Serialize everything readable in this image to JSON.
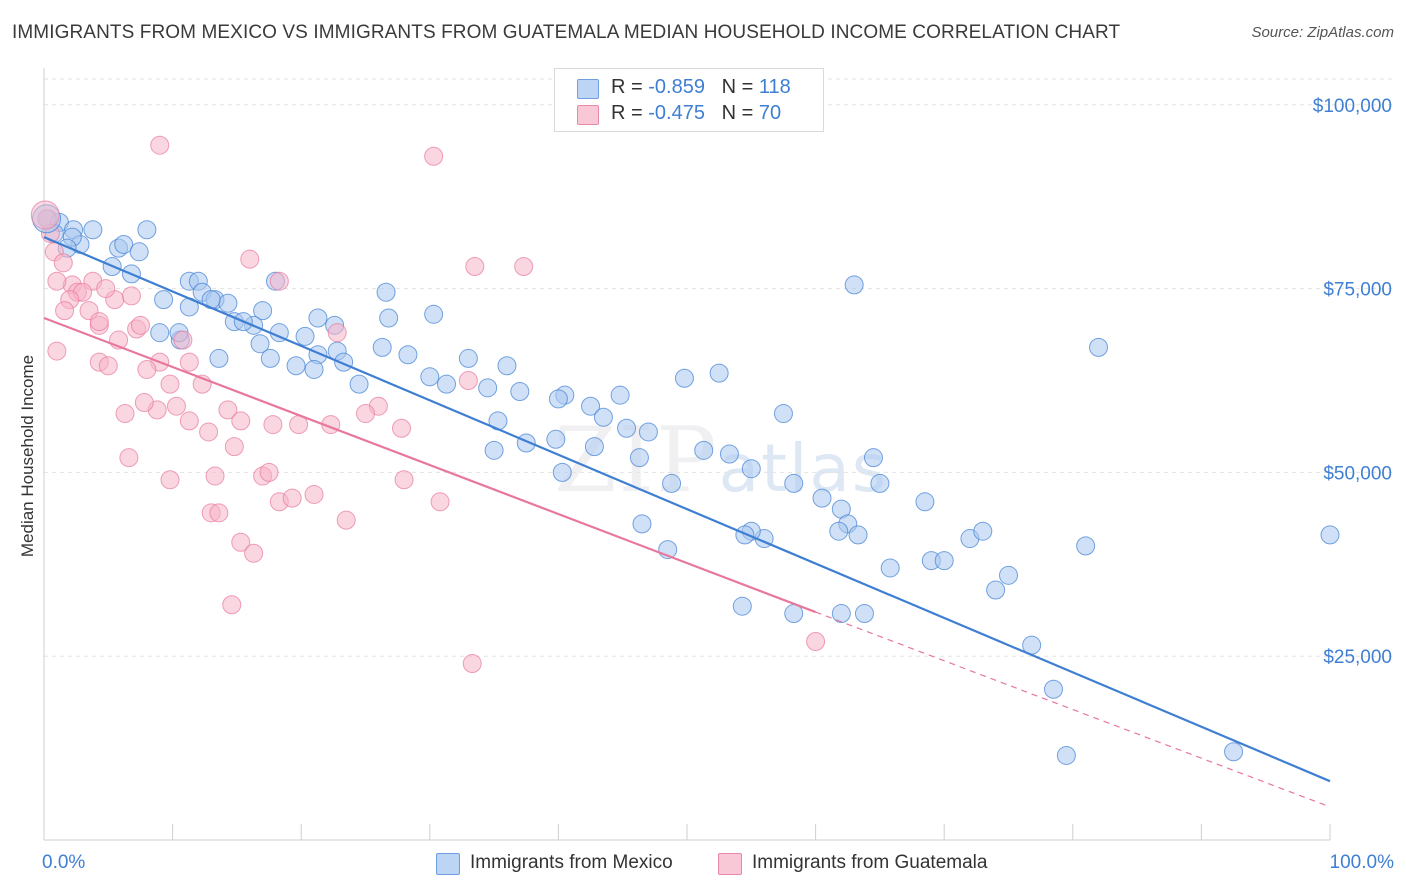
{
  "title": "IMMIGRANTS FROM MEXICO VS IMMIGRANTS FROM GUATEMALA MEDIAN HOUSEHOLD INCOME CORRELATION CHART",
  "source": "Source: ZipAtlas.com",
  "watermark": {
    "zip": "ZIP",
    "atlas": "atlas"
  },
  "legend": {
    "rows": [
      {
        "r_label": "R = ",
        "r_value": "-0.859",
        "n_label": "N = ",
        "n_value": "118",
        "color": "#a9c8f0"
      },
      {
        "r_label": "R = ",
        "r_value": "-0.475",
        "n_label": "N = ",
        "n_value": "70",
        "color": "#f5b5c8"
      }
    ]
  },
  "chart_data": {
    "type": "scatter",
    "title": "IMMIGRANTS FROM MEXICO VS IMMIGRANTS FROM GUATEMALA MEDIAN HOUSEHOLD INCOME CORRELATION CHART",
    "xlabel": "",
    "ylabel": "Median Household Income",
    "xlim": [
      0,
      100
    ],
    "ylim": [
      0,
      105000
    ],
    "x_tick_labels": [
      "0.0%",
      "100.0%"
    ],
    "y_ticks": [
      25000,
      50000,
      75000,
      100000
    ],
    "y_tick_labels": [
      "$25,000",
      "$50,000",
      "$75,000",
      "$100,000"
    ],
    "grid": true,
    "legend_position": "bottom",
    "series": [
      {
        "name": "Immigrants from Mexico",
        "color": "#3f7fd3",
        "fill": "#a9c8f0",
        "trend": {
          "x": [
            0,
            100
          ],
          "y": [
            82000,
            8000
          ],
          "dashed_extension": false
        },
        "points": [
          [
            0.3,
            84500
          ],
          [
            1.2,
            84000
          ],
          [
            0.8,
            82500
          ],
          [
            2.3,
            83000
          ],
          [
            3.8,
            83000
          ],
          [
            8.0,
            83000
          ],
          [
            2.8,
            81000
          ],
          [
            2.2,
            82000
          ],
          [
            1.8,
            80500
          ],
          [
            5.8,
            80500
          ],
          [
            6.2,
            81000
          ],
          [
            7.4,
            80000
          ],
          [
            5.3,
            78000
          ],
          [
            6.8,
            77000
          ],
          [
            11.3,
            76000
          ],
          [
            12.0,
            76000
          ],
          [
            18.0,
            76000
          ],
          [
            26.6,
            74500
          ],
          [
            12.3,
            74500
          ],
          [
            13.3,
            73500
          ],
          [
            9.3,
            73500
          ],
          [
            14.3,
            73000
          ],
          [
            11.3,
            72500
          ],
          [
            17.0,
            72000
          ],
          [
            26.8,
            71000
          ],
          [
            30.3,
            71500
          ],
          [
            21.3,
            71000
          ],
          [
            14.8,
            70500
          ],
          [
            16.3,
            70000
          ],
          [
            22.6,
            70000
          ],
          [
            9.0,
            69000
          ],
          [
            18.3,
            69000
          ],
          [
            20.3,
            68500
          ],
          [
            10.6,
            68000
          ],
          [
            16.8,
            67500
          ],
          [
            26.3,
            67000
          ],
          [
            22.8,
            66500
          ],
          [
            21.3,
            66000
          ],
          [
            28.3,
            66000
          ],
          [
            17.6,
            65500
          ],
          [
            23.3,
            65000
          ],
          [
            13.6,
            65500
          ],
          [
            19.6,
            64500
          ],
          [
            21.0,
            64000
          ],
          [
            33.0,
            65500
          ],
          [
            36.0,
            64500
          ],
          [
            30.0,
            63000
          ],
          [
            40.5,
            60500
          ],
          [
            24.5,
            62000
          ],
          [
            37.0,
            61000
          ],
          [
            40.0,
            60000
          ],
          [
            34.5,
            61500
          ],
          [
            31.3,
            62000
          ],
          [
            44.8,
            60500
          ],
          [
            42.5,
            59000
          ],
          [
            49.8,
            62800
          ],
          [
            52.5,
            63500
          ],
          [
            43.5,
            57500
          ],
          [
            45.3,
            56000
          ],
          [
            47.0,
            55500
          ],
          [
            35.3,
            57000
          ],
          [
            37.5,
            54000
          ],
          [
            39.8,
            54500
          ],
          [
            42.8,
            53500
          ],
          [
            46.3,
            52000
          ],
          [
            51.3,
            53000
          ],
          [
            35.0,
            53000
          ],
          [
            53.3,
            52500
          ],
          [
            57.5,
            58000
          ],
          [
            48.8,
            48500
          ],
          [
            40.3,
            50000
          ],
          [
            55.0,
            50500
          ],
          [
            58.3,
            48500
          ],
          [
            60.5,
            46500
          ],
          [
            62.0,
            45000
          ],
          [
            64.5,
            52000
          ],
          [
            65.0,
            48500
          ],
          [
            68.5,
            46000
          ],
          [
            69.0,
            38000
          ],
          [
            70.0,
            38000
          ],
          [
            62.5,
            43000
          ],
          [
            63.3,
            41500
          ],
          [
            61.8,
            42000
          ],
          [
            72.0,
            41000
          ],
          [
            65.8,
            37000
          ],
          [
            56.0,
            41000
          ],
          [
            55.0,
            42000
          ],
          [
            54.5,
            41500
          ],
          [
            46.5,
            43000
          ],
          [
            48.5,
            39500
          ],
          [
            74.0,
            34000
          ],
          [
            75.0,
            36000
          ],
          [
            76.8,
            26500
          ],
          [
            81.0,
            40000
          ],
          [
            78.5,
            20500
          ],
          [
            63.8,
            30800
          ],
          [
            62.0,
            30800
          ],
          [
            54.3,
            31800
          ],
          [
            58.3,
            30800
          ],
          [
            79.5,
            11500
          ],
          [
            92.5,
            12000
          ],
          [
            73.0,
            42000
          ],
          [
            63.0,
            75500
          ],
          [
            82.0,
            67000
          ],
          [
            100.0,
            41500
          ],
          [
            10.5,
            69000
          ],
          [
            13.0,
            73500
          ],
          [
            15.5,
            70500
          ]
        ]
      },
      {
        "name": "Immigrants from Guatemala",
        "color": "#e8779c",
        "fill": "#f5b5c8",
        "trend": {
          "x": [
            0,
            60
          ],
          "y": [
            71000,
            31000
          ],
          "dashed_extension": true,
          "dashed_to": [
            100,
            4500
          ]
        },
        "points": [
          [
            0.2,
            84500
          ],
          [
            0.5,
            82500
          ],
          [
            0.8,
            80000
          ],
          [
            1.5,
            78500
          ],
          [
            3.8,
            76000
          ],
          [
            2.2,
            75500
          ],
          [
            2.6,
            74500
          ],
          [
            3.0,
            74500
          ],
          [
            1.0,
            76000
          ],
          [
            2.0,
            73500
          ],
          [
            5.5,
            73500
          ],
          [
            6.8,
            74000
          ],
          [
            4.3,
            70000
          ],
          [
            1.6,
            72000
          ],
          [
            3.5,
            72000
          ],
          [
            4.3,
            70500
          ],
          [
            7.2,
            69500
          ],
          [
            5.8,
            68000
          ],
          [
            10.8,
            68000
          ],
          [
            9.0,
            65000
          ],
          [
            11.3,
            65000
          ],
          [
            4.3,
            65000
          ],
          [
            5.0,
            64500
          ],
          [
            8.0,
            64000
          ],
          [
            9.8,
            62000
          ],
          [
            12.3,
            62000
          ],
          [
            6.3,
            58000
          ],
          [
            8.8,
            58500
          ],
          [
            7.8,
            59500
          ],
          [
            10.3,
            59000
          ],
          [
            14.3,
            58500
          ],
          [
            11.3,
            57000
          ],
          [
            15.3,
            57000
          ],
          [
            17.8,
            56500
          ],
          [
            19.8,
            56500
          ],
          [
            22.3,
            56500
          ],
          [
            12.8,
            55500
          ],
          [
            14.8,
            53500
          ],
          [
            6.6,
            52000
          ],
          [
            9.8,
            49000
          ],
          [
            13.3,
            49500
          ],
          [
            17.0,
            49500
          ],
          [
            17.5,
            50000
          ],
          [
            18.3,
            46000
          ],
          [
            19.3,
            46500
          ],
          [
            21.0,
            47000
          ],
          [
            13.0,
            44500
          ],
          [
            13.6,
            44500
          ],
          [
            23.5,
            43500
          ],
          [
            15.3,
            40500
          ],
          [
            16.3,
            39000
          ],
          [
            14.6,
            32000
          ],
          [
            26.0,
            59000
          ],
          [
            22.8,
            69000
          ],
          [
            27.8,
            56000
          ],
          [
            30.8,
            46000
          ],
          [
            33.5,
            78000
          ],
          [
            37.3,
            78000
          ],
          [
            9.0,
            94500
          ],
          [
            30.3,
            93000
          ],
          [
            16.0,
            79000
          ],
          [
            18.3,
            76000
          ],
          [
            4.8,
            75000
          ],
          [
            7.5,
            70000
          ],
          [
            1.0,
            66500
          ],
          [
            33.0,
            62500
          ],
          [
            25.0,
            58000
          ],
          [
            33.3,
            24000
          ],
          [
            60.0,
            27000
          ],
          [
            28.0,
            49000
          ]
        ]
      }
    ]
  },
  "bottom_legend": [
    "Immigrants from Mexico",
    "Immigrants from Guatemala"
  ]
}
